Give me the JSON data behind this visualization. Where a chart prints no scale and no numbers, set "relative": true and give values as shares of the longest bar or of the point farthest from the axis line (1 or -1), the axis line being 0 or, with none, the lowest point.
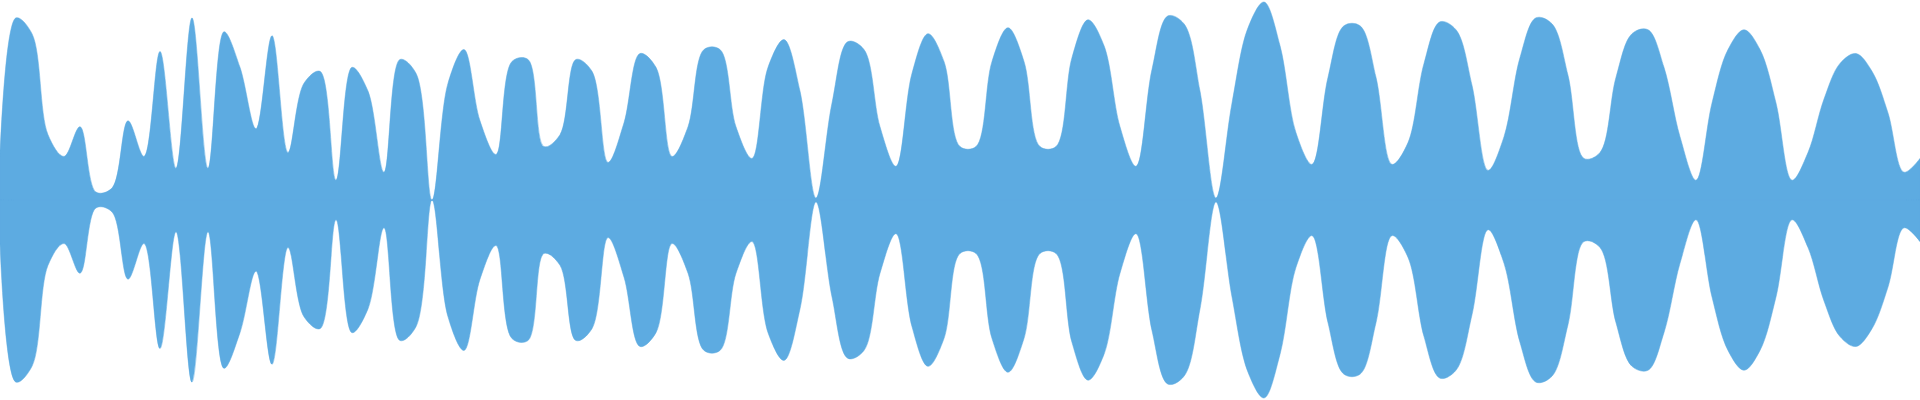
{
  "chart_data": {
    "type": "area",
    "relative": true,
    "categories": [
      null,
      null,
      null,
      null,
      null,
      null,
      null,
      null,
      null,
      null,
      null,
      null,
      null,
      null,
      null,
      null,
      null,
      null,
      null,
      null,
      null,
      null,
      null,
      null,
      null,
      null,
      null,
      null,
      null,
      null,
      null,
      null,
      null,
      null,
      null,
      null,
      null,
      null,
      null,
      null,
      null,
      null,
      null,
      null,
      null,
      null,
      null,
      null,
      null,
      null,
      null,
      null,
      null,
      null,
      null,
      null,
      null,
      null,
      null,
      null,
      null,
      null,
      null,
      null,
      null,
      null,
      null,
      null,
      null,
      null,
      null,
      null,
      null,
      null,
      null,
      null,
      null,
      null,
      null,
      null,
      null,
      null,
      null,
      null,
      null,
      null,
      null,
      null,
      null,
      null,
      null,
      null,
      null,
      null,
      null,
      null,
      null,
      null,
      null,
      null,
      null,
      null,
      null,
      null,
      null,
      null,
      null,
      null,
      null,
      null,
      null,
      null,
      null,
      null,
      null,
      null,
      null,
      null,
      null,
      null,
      null
    ],
    "series": [
      {
        "color": "#5dabe1",
        "values": [
          0.22,
          0.92,
          0.84,
          0.33,
          0.22,
          0.37,
          0.04,
          0.06,
          0.4,
          0.22,
          0.75,
          0.16,
          0.92,
          0.16,
          0.85,
          0.67,
          0.36,
          0.83,
          0.24,
          0.59,
          0.65,
          0.1,
          0.67,
          0.55,
          0.14,
          0.71,
          0.64,
          0,
          0.59,
          0.76,
          0.4,
          0.23,
          0.7,
          0.71,
          0.27,
          0.33,
          0.71,
          0.65,
          0.19,
          0.39,
          0.74,
          0.67,
          0.22,
          0.37,
          0.76,
          0.76,
          0.37,
          0.21,
          0.67,
          0.81,
          0.55,
          0.01,
          0.49,
          0.8,
          0.76,
          0.37,
          0.17,
          0.64,
          0.84,
          0.7,
          0.27,
          0.27,
          0.7,
          0.87,
          0.7,
          0.27,
          0.27,
          0.72,
          0.91,
          0.78,
          0.37,
          0.17,
          0.66,
          0.93,
          0.89,
          0.55,
          0.01,
          0.49,
          0.87,
          1,
          0.78,
          0.34,
          0.18,
          0.62,
          0.88,
          0.88,
          0.62,
          0.18,
          0.29,
          0.69,
          0.9,
          0.86,
          0.58,
          0.15,
          0.32,
          0.72,
          0.92,
          0.89,
          0.63,
          0.21,
          0.24,
          0.62,
          0.84,
          0.86,
          0.67,
          0.32,
          0.1,
          0.49,
          0.76,
          0.86,
          0.76,
          0.49,
          0.1,
          0.24,
          0.51,
          0.69,
          0.74,
          0.65,
          0.44,
          0.14,
          0.21
        ]
      },
      {
        "color": "#5dabe1",
        "values": [
          -0.22,
          -0.92,
          -0.84,
          -0.33,
          -0.22,
          -0.37,
          -0.04,
          -0.06,
          -0.4,
          -0.22,
          -0.75,
          -0.16,
          -0.92,
          -0.16,
          -0.85,
          -0.67,
          -0.36,
          -0.83,
          -0.24,
          -0.59,
          -0.65,
          -0.1,
          -0.67,
          -0.55,
          -0.14,
          -0.71,
          -0.64,
          0,
          -0.59,
          -0.76,
          -0.4,
          -0.23,
          -0.7,
          -0.71,
          -0.27,
          -0.33,
          -0.71,
          -0.65,
          -0.19,
          -0.39,
          -0.74,
          -0.67,
          -0.22,
          -0.37,
          -0.76,
          -0.76,
          -0.37,
          -0.21,
          -0.67,
          -0.81,
          -0.55,
          -0.01,
          -0.49,
          -0.8,
          -0.76,
          -0.37,
          -0.17,
          -0.64,
          -0.84,
          -0.7,
          -0.27,
          -0.27,
          -0.7,
          -0.87,
          -0.7,
          -0.27,
          -0.27,
          -0.72,
          -0.91,
          -0.78,
          -0.37,
          -0.17,
          -0.66,
          -0.93,
          -0.89,
          -0.55,
          -0.01,
          -0.49,
          -0.87,
          -1,
          -0.78,
          -0.34,
          -0.18,
          -0.62,
          -0.88,
          -0.88,
          -0.62,
          -0.18,
          -0.29,
          -0.69,
          -0.9,
          -0.86,
          -0.58,
          -0.15,
          -0.32,
          -0.72,
          -0.92,
          -0.89,
          -0.63,
          -0.21,
          -0.24,
          -0.62,
          -0.84,
          -0.86,
          -0.67,
          -0.32,
          -0.1,
          -0.49,
          -0.76,
          -0.86,
          -0.76,
          -0.49,
          -0.1,
          -0.24,
          -0.51,
          -0.69,
          -0.74,
          -0.65,
          -0.44,
          -0.14,
          -0.21
        ]
      }
    ]
  }
}
